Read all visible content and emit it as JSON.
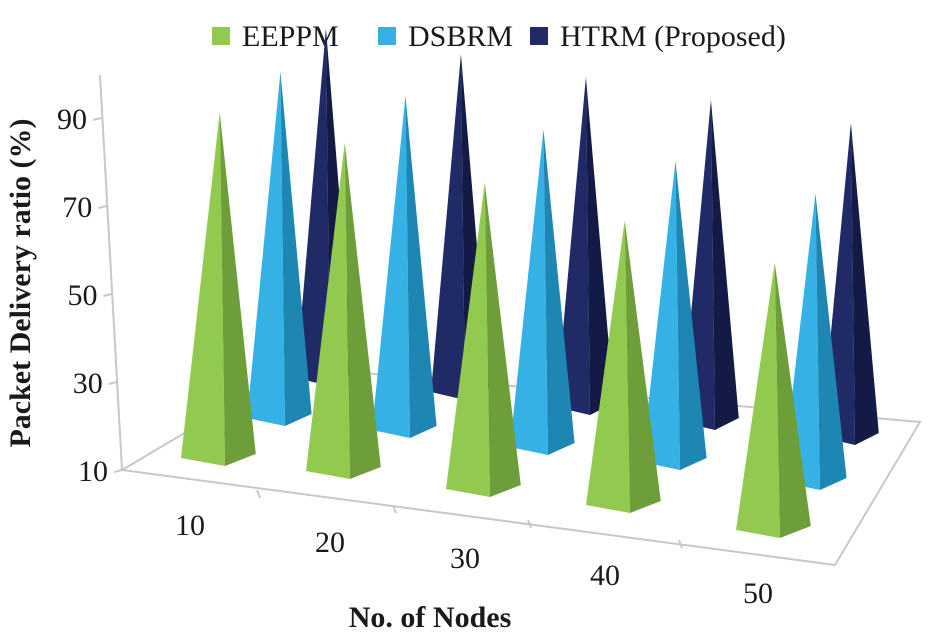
{
  "chart_data": {
    "type": "bar",
    "style": "3d-cone",
    "title": "",
    "xlabel": "No. of Nodes",
    "ylabel": "Packet Delivery ratio (%)",
    "ylim": [
      10,
      100
    ],
    "yticks": [
      10,
      30,
      50,
      70,
      90
    ],
    "categories": [
      "10",
      "20",
      "30",
      "40",
      "50"
    ],
    "series": [
      {
        "name": "EEPPM",
        "values": [
          89,
          85,
          80,
          75,
          71
        ],
        "color": "#92c94f",
        "shade": "#6e9e3a"
      },
      {
        "name": "DSBRM",
        "values": [
          93,
          90,
          86,
          82,
          79
        ],
        "color": "#35b1e6",
        "shade": "#1d86b3"
      },
      {
        "name": "HTRM (Proposed)",
        "values": [
          97,
          94,
          92,
          90,
          88
        ],
        "color": "#1f2a66",
        "shade": "#121a45"
      }
    ],
    "legend": {
      "position": "top"
    },
    "grid": false
  }
}
